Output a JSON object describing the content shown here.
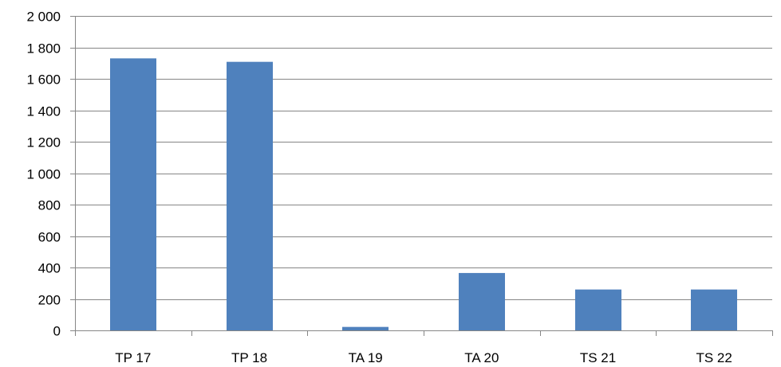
{
  "chart_data": {
    "type": "bar",
    "title": "",
    "xlabel": "",
    "ylabel": "",
    "categories": [
      "TP 17",
      "TP 18",
      "TA 19",
      "TA 20",
      "TS 21",
      "TS 22"
    ],
    "values": [
      1730,
      1708,
      22,
      365,
      260,
      260
    ],
    "ylim": [
      0,
      2000
    ],
    "yticks": [
      0,
      200,
      400,
      600,
      800,
      1000,
      1200,
      1400,
      1600,
      1800,
      2000
    ],
    "ytick_labels": [
      "0",
      "200",
      "400",
      "600",
      "800",
      "1 000",
      "1 200",
      "1 400",
      "1 600",
      "1 800",
      "2 000"
    ],
    "grid": true,
    "legend": "none",
    "colors": {
      "bar": "#4f81bd",
      "grid": "#868686",
      "axis": "#868686"
    }
  }
}
